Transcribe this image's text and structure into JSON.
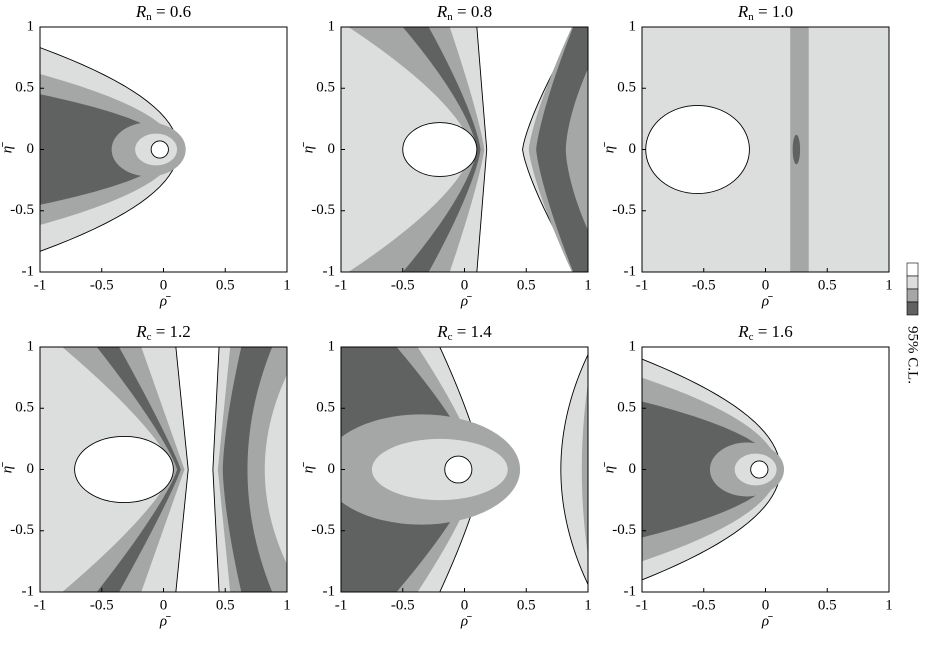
{
  "chart_data": [
    {
      "type": "contour",
      "title": {
        "symbol": "R",
        "subscript": "n",
        "rest": " = 0.6"
      },
      "xlabel": "ρ̄",
      "ylabel": "η̄",
      "xlim": [
        -1,
        1
      ],
      "ylim": [
        -1,
        1
      ],
      "xticks": [
        -1,
        -0.5,
        0,
        0.5,
        1
      ],
      "yticks": [
        -1,
        -0.5,
        0,
        0.5,
        1
      ]
    },
    {
      "type": "contour",
      "title": {
        "symbol": "R",
        "subscript": "n",
        "rest": " = 0.8"
      },
      "xlabel": "ρ̄",
      "ylabel": "η̄",
      "xlim": [
        -1,
        1
      ],
      "ylim": [
        -1,
        1
      ],
      "xticks": [
        -1,
        -0.5,
        0,
        0.5,
        1
      ],
      "yticks": [
        -1,
        -0.5,
        0,
        0.5,
        1
      ]
    },
    {
      "type": "contour",
      "title": {
        "symbol": "R",
        "subscript": "n",
        "rest": " = 1.0"
      },
      "xlabel": "ρ̄",
      "ylabel": "η̄",
      "xlim": [
        -1,
        1
      ],
      "ylim": [
        -1,
        1
      ],
      "xticks": [
        -1,
        -0.5,
        0,
        0.5,
        1
      ],
      "yticks": [
        -1,
        -0.5,
        0,
        0.5,
        1
      ]
    },
    {
      "type": "contour",
      "title": {
        "symbol": "R",
        "subscript": "c",
        "rest": " = 1.2"
      },
      "xlabel": "ρ̄",
      "ylabel": "η̄",
      "xlim": [
        -1,
        1
      ],
      "ylim": [
        -1,
        1
      ],
      "xticks": [
        -1,
        -0.5,
        0,
        0.5,
        1
      ],
      "yticks": [
        -1,
        -0.5,
        0,
        0.5,
        1
      ]
    },
    {
      "type": "contour",
      "title": {
        "symbol": "R",
        "subscript": "c",
        "rest": " = 1.4"
      },
      "xlabel": "ρ̄",
      "ylabel": "η̄",
      "xlim": [
        -1,
        1
      ],
      "ylim": [
        -1,
        1
      ],
      "xticks": [
        -1,
        -0.5,
        0,
        0.5,
        1
      ],
      "yticks": [
        -1,
        -0.5,
        0,
        0.5,
        1
      ]
    },
    {
      "type": "contour",
      "title": {
        "symbol": "R",
        "subscript": "c",
        "rest": " = 1.6"
      },
      "xlabel": "ρ̄",
      "ylabel": "η̄",
      "xlim": [
        -1,
        1
      ],
      "ylim": [
        -1,
        1
      ],
      "xticks": [
        -1,
        -0.5,
        0,
        0.5,
        1
      ],
      "yticks": [
        -1,
        -0.5,
        0,
        0.5,
        1
      ]
    }
  ],
  "colorbar": {
    "label": "95% C.L.",
    "colors": [
      "#ffffff",
      "#dcdedd",
      "#a5a7a6",
      "#5f6261"
    ]
  }
}
